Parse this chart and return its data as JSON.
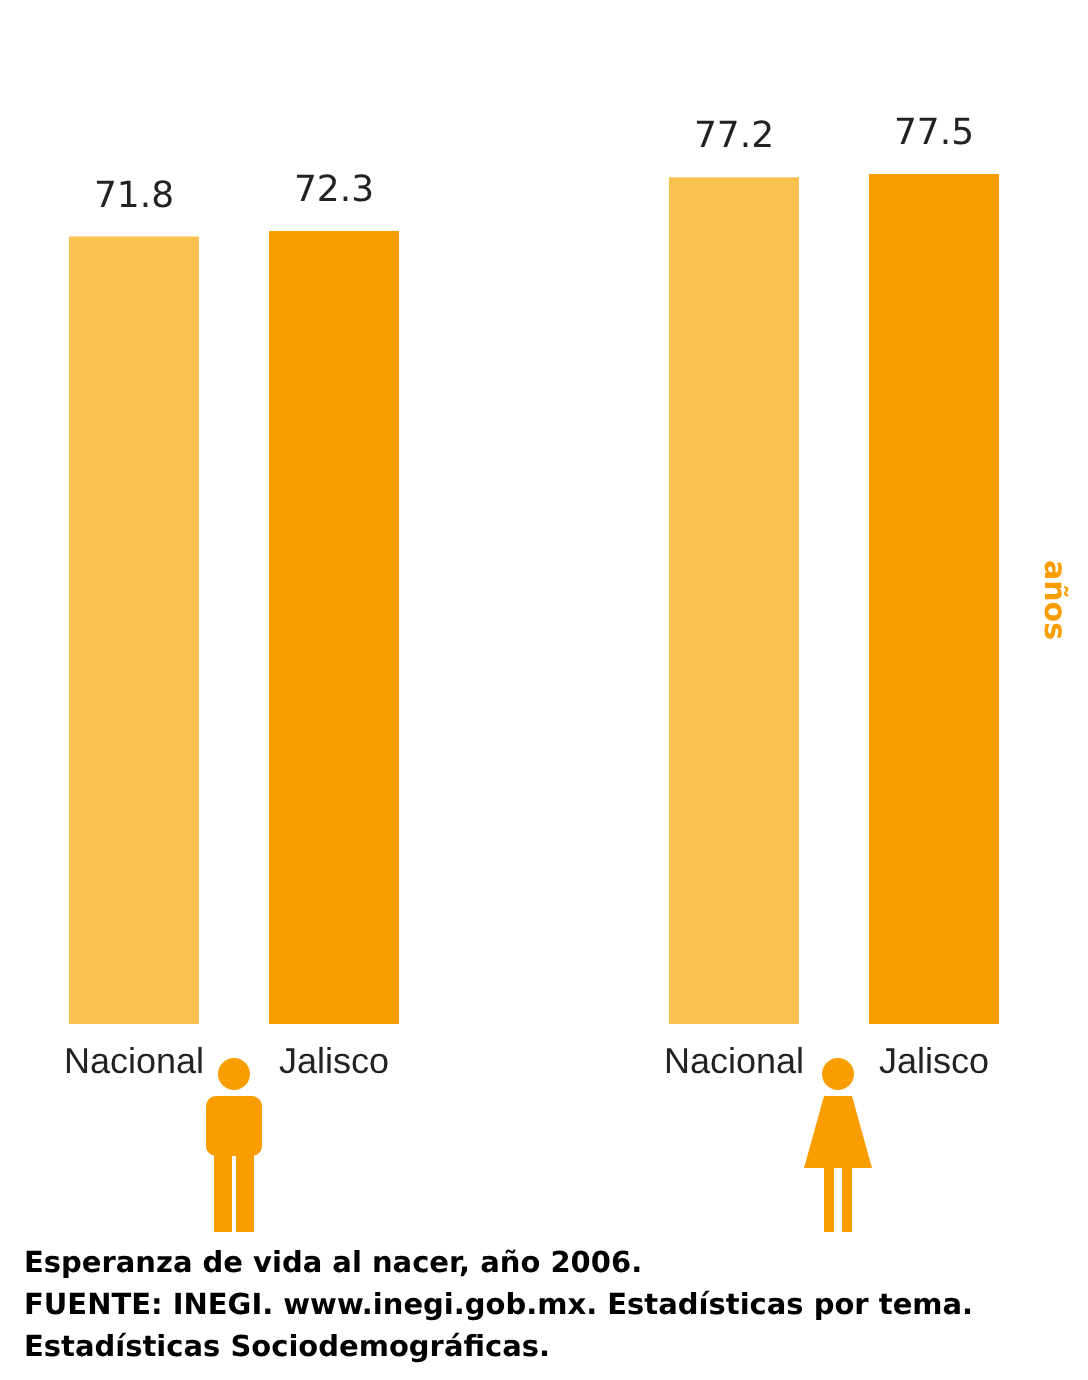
{
  "chart_data": {
    "type": "bar",
    "ylabel": "años",
    "categories": [
      "Nacional",
      "Jalisco",
      "Nacional",
      "Jalisco"
    ],
    "values": [
      71.8,
      72.3,
      77.2,
      77.5
    ],
    "colors": [
      "#f9c14f",
      "#f99d00",
      "#f9c14f",
      "#f99d00"
    ],
    "data_labels": true,
    "tick_labels": "x",
    "annotations": [
      "Esperanza de vida al nacer, año 2006.",
      "FUENTE: INEGI. www.inegi.gob.mx. Estadísticas por tema. Estadísticas Sociodemográficas."
    ]
  }
}
